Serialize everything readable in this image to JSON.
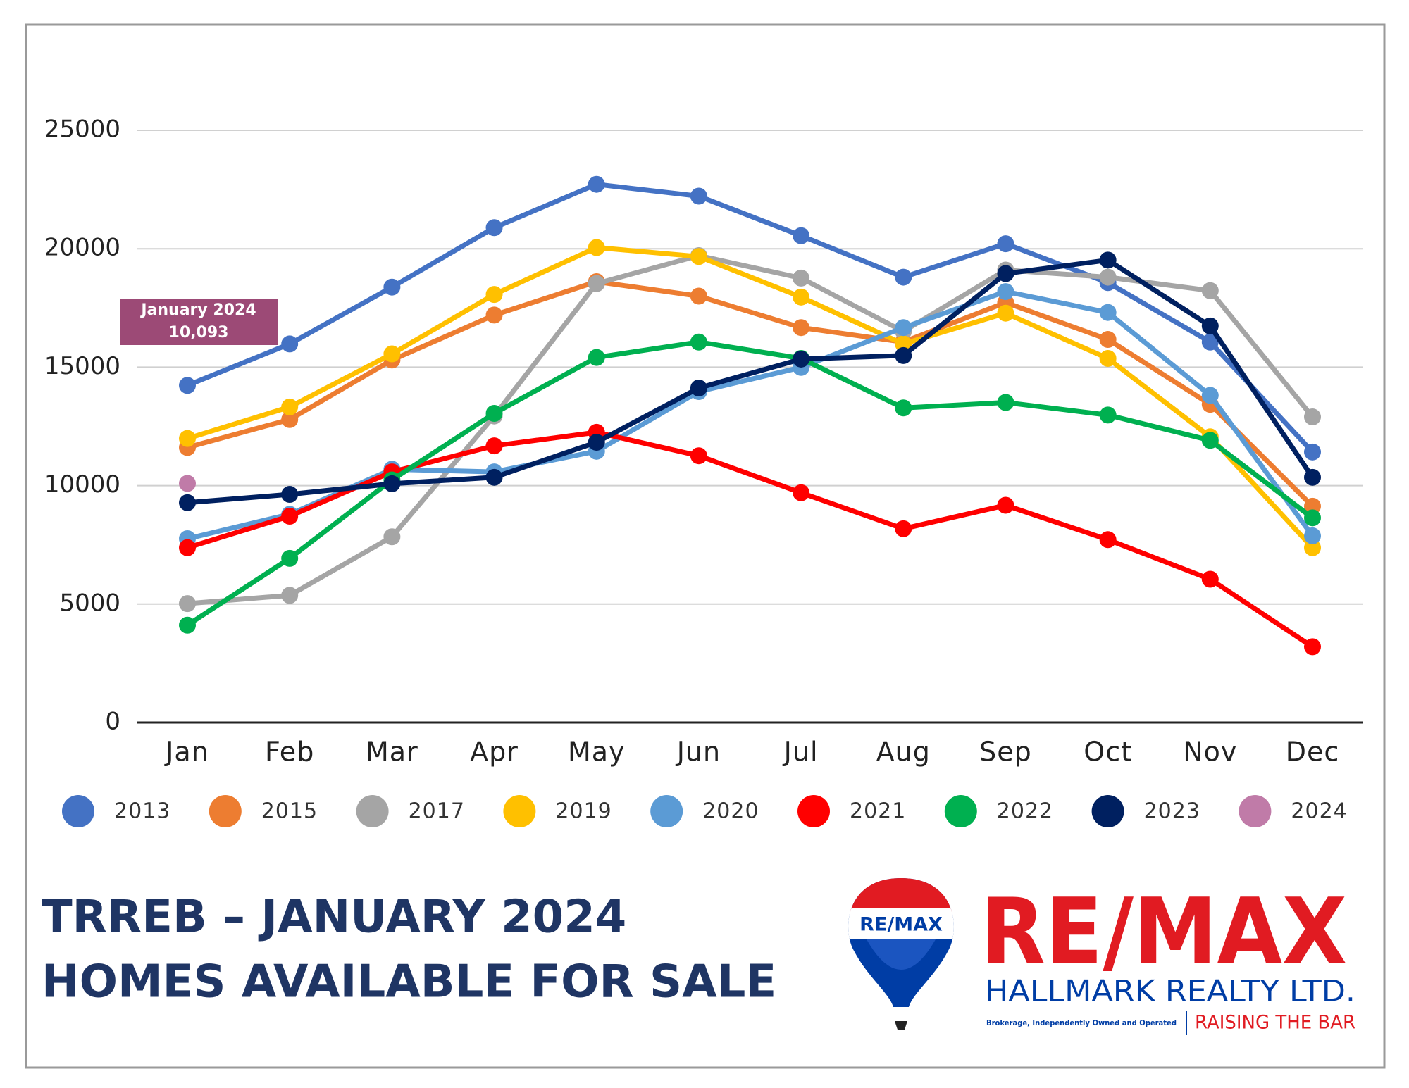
{
  "chart_data": {
    "type": "line",
    "title_lines": [
      "TRREB – JANUARY 2024",
      "HOMES AVAILABLE FOR SALE"
    ],
    "annotation": {
      "lines": [
        "January 2024",
        "10,093"
      ]
    },
    "categories": [
      "Jan",
      "Feb",
      "Mar",
      "Apr",
      "May",
      "Jun",
      "Jul",
      "Aug",
      "Sep",
      "Oct",
      "Nov",
      "Dec"
    ],
    "ylim": [
      0,
      25000
    ],
    "yticks": [
      0,
      5000,
      10000,
      15000,
      20000,
      25000
    ],
    "grid": true,
    "legend": "bottom",
    "series": [
      {
        "name": "2013",
        "color": "#4472c4",
        "values": [
          14230,
          15980,
          18380,
          20890,
          22720,
          22220,
          20550,
          18800,
          20210,
          18570,
          16060,
          11420
        ]
      },
      {
        "name": "2015",
        "color": "#ed7d31",
        "values": [
          11610,
          12790,
          15300,
          17200,
          18610,
          18000,
          16670,
          16060,
          17730,
          16170,
          13430,
          9130
        ]
      },
      {
        "name": "2017",
        "color": "#a5a5a5",
        "values": [
          5020,
          5370,
          7840,
          12940,
          18530,
          19710,
          18760,
          16510,
          19100,
          18800,
          18230,
          12900
        ]
      },
      {
        "name": "2019",
        "color": "#ffc000",
        "values": [
          11990,
          13320,
          15560,
          18070,
          20050,
          19670,
          17960,
          15980,
          17280,
          15370,
          12060,
          7380
        ]
      },
      {
        "name": "2020",
        "color": "#5b9bd5",
        "values": [
          7760,
          8790,
          10690,
          10580,
          11450,
          13970,
          14990,
          16670,
          18190,
          17310,
          13810,
          7880
        ]
      },
      {
        "name": "2021",
        "color": "#ff0000",
        "values": [
          7380,
          8710,
          10580,
          11680,
          12250,
          11260,
          9700,
          8180,
          9170,
          7720,
          6050,
          3200
        ]
      },
      {
        "name": "2022",
        "color": "#00b050",
        "values": [
          4110,
          6930,
          10240,
          13050,
          15410,
          16060,
          15370,
          13280,
          13510,
          12980,
          11910,
          8640
        ]
      },
      {
        "name": "2023",
        "color": "#002060",
        "values": [
          9280,
          9630,
          10080,
          10350,
          11830,
          14120,
          15340,
          15490,
          18950,
          19520,
          16740,
          10350
        ]
      },
      {
        "name": "2024",
        "color": "#c07ba8",
        "values": [
          10093,
          null,
          null,
          null,
          null,
          null,
          null,
          null,
          null,
          null,
          null,
          null
        ]
      }
    ]
  },
  "logo": {
    "balloon_text": "RE/MAX",
    "brand": "RE/MAX",
    "company": "HALLMARK REALTY LTD.",
    "note": "Brokerage, Independently Owned and Operated",
    "slogan": "RAISING THE BAR"
  }
}
